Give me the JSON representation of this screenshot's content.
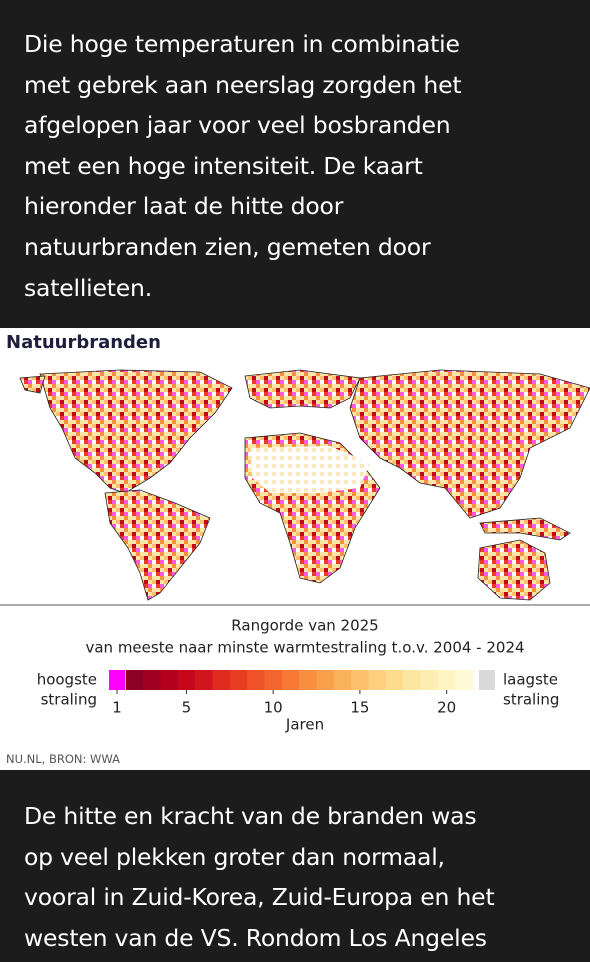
{
  "intro": {
    "lines": [
      "Die hoge temperaturen in combinatie",
      "met gebrek aan neerslag zorgden het",
      "afgelopen jaar voor veel bosbranden",
      "met een hoge intensiteit. De kaart",
      "hieronder laat de hitte door",
      "natuurbranden zien, gemeten door",
      "satellieten."
    ]
  },
  "figure": {
    "title": "Natuurbranden",
    "legend": {
      "title_lines": [
        "Rangorde van 2025",
        "van meeste naar minste warmtestraling t.o.v. 2004 - 2024"
      ],
      "high_label": [
        "hoogste",
        "straling"
      ],
      "low_label": [
        "laagste",
        "straling"
      ],
      "axis_label": "Jaren",
      "ticks": [
        1,
        5,
        10,
        15,
        20
      ],
      "top_color": "#ff00ff",
      "bottom_color": "#d9d9d9",
      "colors": [
        "#8b0024",
        "#a0001f",
        "#b3001c",
        "#c4071b",
        "#d2141c",
        "#df2a1f",
        "#e83d22",
        "#ef5128",
        "#f3652e",
        "#f67a36",
        "#f88e40",
        "#f9a04c",
        "#fab25a",
        "#fbc26b",
        "#fcd07c",
        "#fddc8e",
        "#fde6a0",
        "#feeeb2",
        "#fef4c4",
        "#fff9d6"
      ]
    },
    "source": "NU.NL, BRON: WWA"
  },
  "outro": {
    "lines": [
      "De hitte en kracht van de branden was",
      "op veel plekken groter dan normaal,",
      "vooral in Zuid-Korea, Zuid-Europa en het",
      "westen van de VS. Rondom Los Angeles"
    ]
  }
}
